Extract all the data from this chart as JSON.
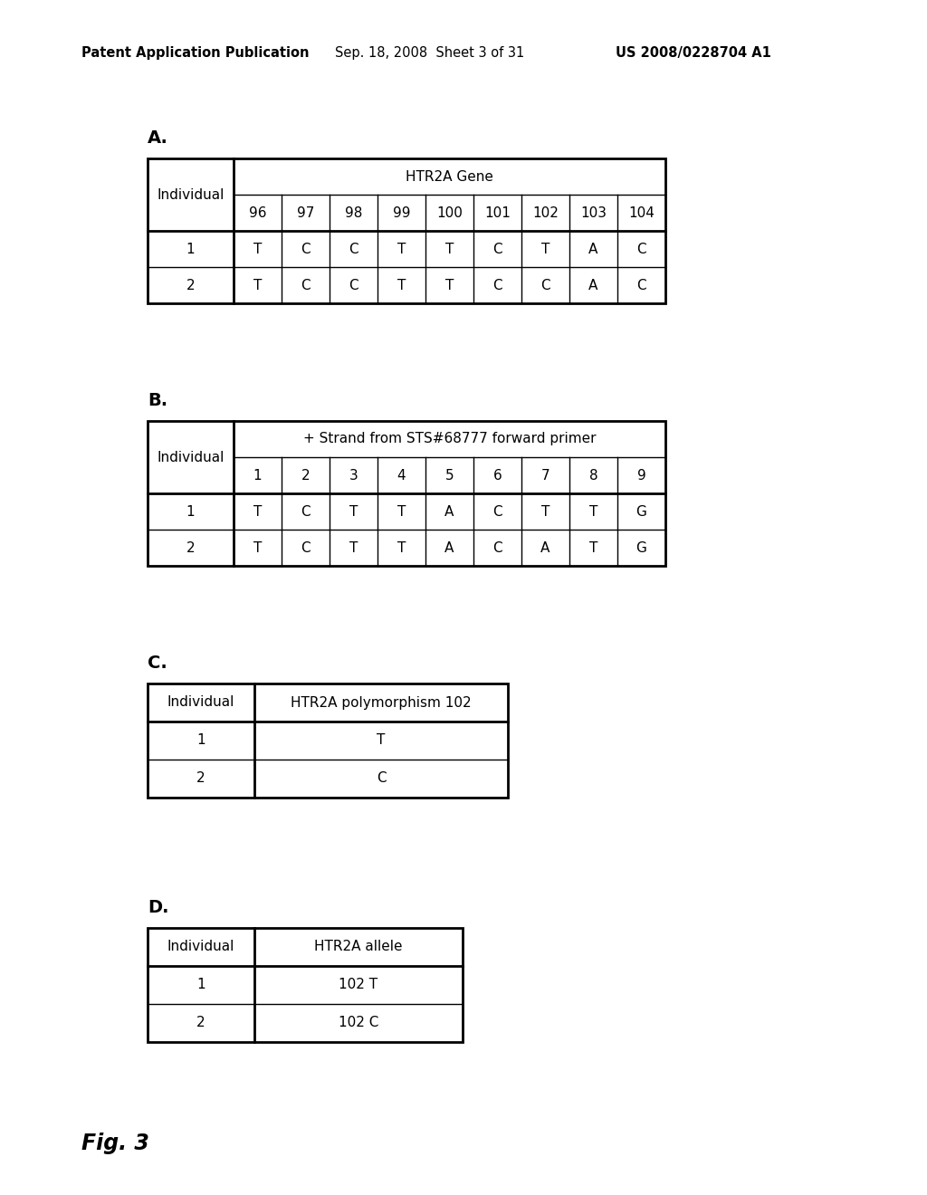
{
  "header_left": "Patent Application Publication",
  "header_mid": "Sep. 18, 2008  Sheet 3 of 31",
  "header_right": "US 2008/0228704 A1",
  "fig_label": "Fig. 3",
  "background_color": "#ffffff",
  "table_A": {
    "label": "A.",
    "header1": "Individual",
    "header2": "HTR2A Gene",
    "col_headers": [
      "96",
      "97",
      "98",
      "99",
      "100",
      "101",
      "102",
      "103",
      "104"
    ],
    "rows": [
      [
        "1",
        "T",
        "C",
        "C",
        "T",
        "T",
        "C",
        "T",
        "A",
        "C"
      ],
      [
        "2",
        "T",
        "C",
        "C",
        "T",
        "T",
        "C",
        "C",
        "A",
        "C"
      ]
    ]
  },
  "table_B": {
    "label": "B.",
    "header1": "Individual",
    "header2": "+ Strand from STS#68777 forward primer",
    "col_headers": [
      "1",
      "2",
      "3",
      "4",
      "5",
      "6",
      "7",
      "8",
      "9"
    ],
    "rows": [
      [
        "1",
        "T",
        "C",
        "T",
        "T",
        "A",
        "C",
        "T",
        "T",
        "G"
      ],
      [
        "2",
        "T",
        "C",
        "T",
        "T",
        "A",
        "C",
        "A",
        "T",
        "G"
      ]
    ]
  },
  "table_C": {
    "label": "C.",
    "header1": "Individual",
    "header2": "HTR2A polymorphism 102",
    "rows": [
      [
        "1",
        "T"
      ],
      [
        "2",
        "C"
      ]
    ]
  },
  "table_D": {
    "label": "D.",
    "header1": "Individual",
    "header2": "HTR2A allele",
    "rows": [
      [
        "1",
        "102 T"
      ],
      [
        "2",
        "102 C"
      ]
    ]
  }
}
